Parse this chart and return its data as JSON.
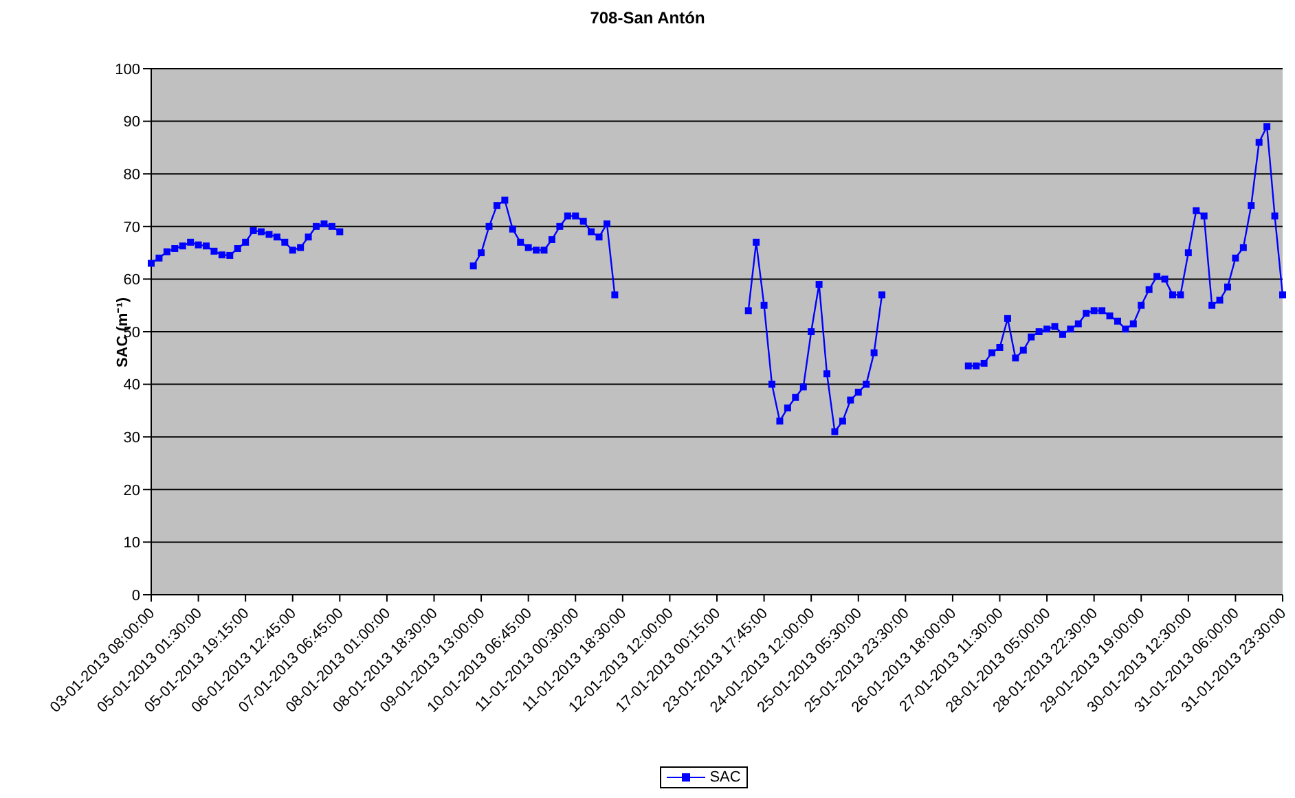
{
  "chart_data": {
    "type": "line",
    "title": "708-San Antón",
    "ylabel": "SAC (m⁻¹)",
    "categories": [
      "03-01-2013 08:00:00",
      null,
      null,
      null,
      null,
      null,
      "05-01-2013 01:30:00",
      null,
      null,
      null,
      null,
      null,
      "05-01-2013 19:15:00",
      null,
      null,
      null,
      null,
      null,
      "06-01-2013 12:45:00",
      null,
      null,
      null,
      null,
      null,
      "07-01-2013 06:45:00",
      null,
      null,
      null,
      null,
      null,
      "08-01-2013 01:00:00",
      null,
      null,
      null,
      null,
      null,
      "08-01-2013 18:30:00",
      null,
      null,
      null,
      null,
      null,
      "09-01-2013 13:00:00",
      null,
      null,
      null,
      null,
      null,
      "10-01-2013 06:45:00",
      null,
      null,
      null,
      null,
      null,
      "11-01-2013 00:30:00",
      null,
      null,
      null,
      null,
      null,
      "11-01-2013 18:30:00",
      null,
      null,
      null,
      null,
      null,
      "12-01-2013 12:00:00",
      null,
      null,
      null,
      null,
      null,
      "17-01-2013 00:15:00",
      null,
      null,
      null,
      null,
      null,
      "23-01-2013 17:45:00",
      null,
      null,
      null,
      null,
      null,
      "24-01-2013 12:00:00",
      null,
      null,
      null,
      null,
      null,
      "25-01-2013 05:30:00",
      null,
      null,
      null,
      null,
      null,
      "25-01-2013 23:30:00",
      null,
      null,
      null,
      null,
      null,
      "26-01-2013 18:00:00",
      null,
      null,
      null,
      null,
      null,
      "27-01-2013 11:30:00",
      null,
      null,
      null,
      null,
      null,
      "28-01-2013 05:00:00",
      null,
      null,
      null,
      null,
      null,
      "28-01-2013 22:30:00",
      null,
      null,
      null,
      null,
      null,
      "29-01-2013 19:00:00",
      null,
      null,
      null,
      null,
      null,
      "30-01-2013 12:30:00",
      null,
      null,
      null,
      null,
      null,
      "31-01-2013 06:00:00",
      null,
      null,
      null,
      null,
      null,
      "31-01-2013 23:30:00"
    ],
    "series": [
      {
        "name": "SAC",
        "color": "#0000ff",
        "values": [
          63,
          64,
          65.2,
          65.8,
          66.3,
          67,
          66.5,
          66.3,
          65.3,
          64.6,
          64.5,
          65.8,
          67,
          69.2,
          69,
          68.5,
          68,
          67,
          65.5,
          66,
          68,
          70,
          70.5,
          70,
          69,
          null,
          null,
          null,
          null,
          null,
          null,
          null,
          null,
          null,
          null,
          null,
          null,
          null,
          null,
          null,
          null,
          62.5,
          65,
          70,
          74,
          75,
          69.5,
          67,
          66,
          65.5,
          65.5,
          67.5,
          70,
          72,
          72,
          71,
          69,
          68,
          70.5,
          57,
          null,
          null,
          null,
          null,
          null,
          null,
          null,
          null,
          null,
          null,
          null,
          null,
          null,
          null,
          null,
          null,
          54,
          67,
          55,
          40,
          33,
          35.5,
          37.5,
          39.5,
          50,
          59,
          42,
          31,
          33,
          37,
          38.5,
          40,
          46,
          57,
          null,
          null,
          null,
          null,
          null,
          null,
          null,
          null,
          null,
          null,
          43.5,
          43.5,
          44,
          46,
          47,
          52.5,
          45,
          46.5,
          49,
          50,
          50.5,
          51,
          49.5,
          50.5,
          51.5,
          53.5,
          54,
          54,
          53,
          52,
          50.5,
          51.5,
          55,
          58,
          60.5,
          60,
          57,
          57,
          65,
          73,
          72,
          55,
          56,
          58.5,
          64,
          66,
          74,
          86,
          89,
          72,
          57
        ]
      }
    ],
    "ylim": [
      0,
      100
    ],
    "yticks": [
      0,
      10,
      20,
      30,
      40,
      50,
      60,
      70,
      80,
      90,
      100
    ],
    "grid": "y",
    "legend": "bottom",
    "marker": "square",
    "line_style": "solid"
  }
}
